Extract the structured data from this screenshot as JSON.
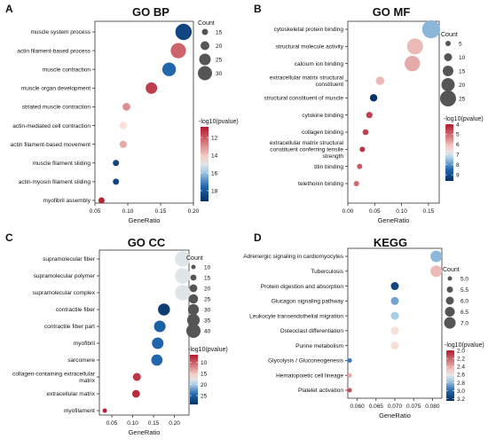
{
  "chart_data": [
    {
      "type": "scatter",
      "panel": "A",
      "title": "GO BP",
      "xlabel": "GeneRatio",
      "xlim": [
        0.05,
        0.2
      ],
      "xticks": [
        "0.05",
        "0.10",
        "0.15",
        "0.20"
      ],
      "xtick_values": [
        0.05,
        0.1,
        0.15,
        0.2
      ],
      "categories": [
        "muscle system process",
        "actin filament-based process",
        "muscle contraction",
        "muscle organ development",
        "striated muscle contraction",
        "actin-mediated cell contraction",
        "actin filament-based movement",
        "muscle filament sliding",
        "actin-myosin filament sliding",
        "myofibril assembly"
      ],
      "points": [
        {
          "term": "muscle system process",
          "gene_ratio": 0.185,
          "count": 34,
          "neg_log10_p": 18.5
        },
        {
          "term": "actin filament-based process",
          "gene_ratio": 0.177,
          "count": 32,
          "neg_log10_p": 12.2
        },
        {
          "term": "muscle contraction",
          "gene_ratio": 0.163,
          "count": 29,
          "neg_log10_p": 17.5
        },
        {
          "term": "muscle organ development",
          "gene_ratio": 0.136,
          "count": 25,
          "neg_log10_p": 11.5
        },
        {
          "term": "striated muscle contraction",
          "gene_ratio": 0.098,
          "count": 18,
          "neg_log10_p": 13.0
        },
        {
          "term": "actin-mediated cell contraction",
          "gene_ratio": 0.093,
          "count": 17,
          "neg_log10_p": 14.5
        },
        {
          "term": "actin filament-based movement",
          "gene_ratio": 0.093,
          "count": 17,
          "neg_log10_p": 13.5
        },
        {
          "term": "muscle filament sliding",
          "gene_ratio": 0.082,
          "count": 15,
          "neg_log10_p": 18.5
        },
        {
          "term": "actin-myosin filament sliding",
          "gene_ratio": 0.082,
          "count": 15,
          "neg_log10_p": 18.5
        },
        {
          "term": "myofibril assembly",
          "gene_ratio": 0.06,
          "count": 11,
          "neg_log10_p": 11.0
        }
      ],
      "size_legend": {
        "title": "Count",
        "values": [
          15,
          20,
          25,
          30
        ],
        "labels": [
          "15",
          "20",
          "25",
          "30"
        ]
      },
      "color_legend": {
        "title": "-log10(pvalue)",
        "low_color": "#b2182b",
        "high_color": "#053061",
        "ticks": [
          12,
          14,
          16,
          18
        ],
        "tick_labels": [
          "12",
          "14",
          "16",
          "18"
        ],
        "range": [
          10.8,
          19.2
        ]
      }
    },
    {
      "type": "scatter",
      "panel": "B",
      "title": "GO MF",
      "xlabel": "GeneRatio",
      "xlim": [
        0,
        0.17
      ],
      "xticks": [
        "0.00",
        "0.05",
        "0.10",
        "0.15"
      ],
      "xtick_values": [
        0,
        0.05,
        0.1,
        0.15
      ],
      "categories": [
        "cytoskeletal protein binding",
        "structural molecule activity",
        "calcium ion binding",
        "extracellular matrix structural constituent",
        "structural constituent of muscle",
        "cytokine binding",
        "collagen binding",
        "extracellular matrix structural constituent conferring tensile strength",
        "titin binding",
        "telethonin binding"
      ],
      "category_lines": [
        [
          "cytoskeletal protein binding"
        ],
        [
          "structural molecule activity"
        ],
        [
          "calcium ion binding"
        ],
        [
          "extracellular matrix structural",
          "constituent"
        ],
        [
          "structural constituent of muscle"
        ],
        [
          "cytokine binding"
        ],
        [
          "collagen binding"
        ],
        [
          "extracellular matrix structural",
          "constituent conferring tensile",
          "strength"
        ],
        [
          "titin binding"
        ],
        [
          "telethonin binding"
        ]
      ],
      "points": [
        {
          "term": "cytoskeletal protein binding",
          "gene_ratio": 0.155,
          "count": 29,
          "neg_log10_p": 7.6
        },
        {
          "term": "structural molecule activity",
          "gene_ratio": 0.125,
          "count": 25,
          "neg_log10_p": 6.0
        },
        {
          "term": "calcium ion binding",
          "gene_ratio": 0.12,
          "count": 24,
          "neg_log10_p": 5.8
        },
        {
          "term": "extracellular matrix structural constituent",
          "gene_ratio": 0.06,
          "count": 11,
          "neg_log10_p": 6.0
        },
        {
          "term": "structural constituent of muscle",
          "gene_ratio": 0.048,
          "count": 9,
          "neg_log10_p": 9.5
        },
        {
          "term": "cytokine binding",
          "gene_ratio": 0.04,
          "count": 7,
          "neg_log10_p": 4.5
        },
        {
          "term": "collagen binding",
          "gene_ratio": 0.033,
          "count": 6,
          "neg_log10_p": 4.5
        },
        {
          "term": "extracellular matrix structural constituent conferring tensile strength",
          "gene_ratio": 0.027,
          "count": 5,
          "neg_log10_p": 4.3
        },
        {
          "term": "titin binding",
          "gene_ratio": 0.022,
          "count": 4,
          "neg_log10_p": 4.8
        },
        {
          "term": "telethonin binding",
          "gene_ratio": 0.016,
          "count": 3,
          "neg_log10_p": 5.0
        }
      ],
      "size_legend": {
        "title": "Count",
        "values": [
          5,
          10,
          15,
          20,
          25
        ],
        "labels": [
          "5",
          "10",
          "15",
          "20",
          "25"
        ]
      },
      "color_legend": {
        "title": "-log10(pvalue)",
        "low_color": "#b2182b",
        "high_color": "#053061",
        "ticks": [
          4,
          5,
          6,
          7,
          8,
          9
        ],
        "tick_labels": [
          "4",
          "5",
          "6",
          "7",
          "8",
          "9"
        ],
        "range": [
          4,
          9.6
        ]
      }
    },
    {
      "type": "scatter",
      "panel": "C",
      "title": "GO CC",
      "xlabel": "GeneRatio",
      "xlim": [
        0.02,
        0.235
      ],
      "xticks": [
        "0.05",
        "0.10",
        "0.15",
        "0.20"
      ],
      "xtick_values": [
        0.05,
        0.1,
        0.15,
        0.2
      ],
      "categories": [
        "supramolecular fiber",
        "supramolecular polymer",
        "supramolecular complex",
        "contractile fiber",
        "contractile fiber part",
        "myofibril",
        "sarcomere",
        "collagen-containing extracellular matrix",
        "extracellular matrix",
        "myofilament"
      ],
      "category_lines": [
        [
          "supramolecular fiber"
        ],
        [
          "supramolecular polymer"
        ],
        [
          "supramolecular complex"
        ],
        [
          "contractile fiber"
        ],
        [
          "contractile fiber part"
        ],
        [
          "myofibril"
        ],
        [
          "sarcomere"
        ],
        [
          "collagen-containing extracellular",
          "matrix"
        ],
        [
          "extracellular matrix"
        ],
        [
          "myofilament"
        ]
      ],
      "points": [
        {
          "term": "supramolecular fiber",
          "gene_ratio": 0.22,
          "count": 44,
          "neg_log10_p": 18.0
        },
        {
          "term": "supramolecular polymer",
          "gene_ratio": 0.22,
          "count": 44,
          "neg_log10_p": 18.0
        },
        {
          "term": "supramolecular complex",
          "gene_ratio": 0.22,
          "count": 44,
          "neg_log10_p": 18.0
        },
        {
          "term": "contractile fiber",
          "gene_ratio": 0.175,
          "count": 33,
          "neg_log10_p": 28.0
        },
        {
          "term": "contractile fiber part",
          "gene_ratio": 0.165,
          "count": 32,
          "neg_log10_p": 25.0
        },
        {
          "term": "myofibril",
          "gene_ratio": 0.16,
          "count": 32,
          "neg_log10_p": 24.5
        },
        {
          "term": "sarcomere",
          "gene_ratio": 0.158,
          "count": 31,
          "neg_log10_p": 24.5
        },
        {
          "term": "collagen-containing extracellular matrix",
          "gene_ratio": 0.11,
          "count": 21,
          "neg_log10_p": 8.0
        },
        {
          "term": "extracellular matrix",
          "gene_ratio": 0.108,
          "count": 20,
          "neg_log10_p": 7.5
        },
        {
          "term": "myofilament",
          "gene_ratio": 0.033,
          "count": 7,
          "neg_log10_p": 7.0
        }
      ],
      "size_legend": {
        "title": "Count",
        "values": [
          10,
          15,
          20,
          25,
          30,
          35,
          40
        ],
        "labels": [
          "10",
          "15",
          "20",
          "25",
          "30",
          "35",
          "40"
        ]
      },
      "color_legend": {
        "title": "-log10(pvalue)",
        "low_color": "#b2182b",
        "high_color": "#053061",
        "ticks": [
          10,
          15,
          20,
          25
        ],
        "tick_labels": [
          "10",
          "15",
          "20",
          "25"
        ],
        "range": [
          6.5,
          29
        ]
      }
    },
    {
      "type": "scatter",
      "panel": "D",
      "title": "KEGG",
      "xlabel": "GeneRatio",
      "xlim": [
        0.0575,
        0.0825
      ],
      "xticks": [
        "0.060",
        "0.065",
        "0.070",
        "0.075",
        "0.080"
      ],
      "xtick_values": [
        0.06,
        0.065,
        0.07,
        0.075,
        0.08
      ],
      "categories": [
        "Adrenergic signaling in cardiomyocytes",
        "Tuberculosis",
        "Protein digestion and absorption",
        "Glucagon signaling pathway",
        "Leukocyte transendothelial migration",
        "Osteoclast differentiation",
        "Purine metabolism",
        "Glycolysis / Gluconeogenesis",
        "Hematopoietic cell lineage",
        "Platelet activation"
      ],
      "points": [
        {
          "term": "Adrenergic signaling in cardiomyocytes",
          "gene_ratio": 0.081,
          "count": 7,
          "neg_log10_p": 2.8
        },
        {
          "term": "Tuberculosis",
          "gene_ratio": 0.081,
          "count": 7,
          "neg_log10_p": 2.45
        },
        {
          "term": "Protein digestion and absorption",
          "gene_ratio": 0.07,
          "count": 6,
          "neg_log10_p": 3.15
        },
        {
          "term": "Glucagon signaling pathway",
          "gene_ratio": 0.07,
          "count": 6,
          "neg_log10_p": 2.85
        },
        {
          "term": "Leukocyte transendothelial migration",
          "gene_ratio": 0.07,
          "count": 6,
          "neg_log10_p": 2.75
        },
        {
          "term": "Osteoclast differentiation",
          "gene_ratio": 0.07,
          "count": 6,
          "neg_log10_p": 2.55
        },
        {
          "term": "Purine metabolism",
          "gene_ratio": 0.07,
          "count": 6,
          "neg_log10_p": 2.55
        },
        {
          "term": "Glycolysis / Gluconeogenesis",
          "gene_ratio": 0.058,
          "count": 5,
          "neg_log10_p": 2.95
        },
        {
          "term": "Hematopoietic cell lineage",
          "gene_ratio": 0.058,
          "count": 5,
          "neg_log10_p": 2.4
        },
        {
          "term": "Platelet activation",
          "gene_ratio": 0.058,
          "count": 5,
          "neg_log10_p": 2.15
        }
      ],
      "size_legend": {
        "title": "Count",
        "values": [
          5.0,
          5.5,
          6.0,
          6.5,
          7.0
        ],
        "labels": [
          "5.0",
          "5.5",
          "6.0",
          "6.5",
          "7.0"
        ]
      },
      "color_legend": {
        "title": "-log10(pvalue)",
        "low_color": "#b2182b",
        "high_color": "#053061",
        "ticks": [
          2.0,
          2.2,
          2.4,
          2.6,
          2.8,
          3.0,
          3.2
        ],
        "tick_labels": [
          "2.0",
          "2.2",
          "2.4",
          "2.6",
          "2.8",
          "3.0",
          "3.2"
        ],
        "range": [
          2.0,
          3.25
        ]
      }
    }
  ]
}
